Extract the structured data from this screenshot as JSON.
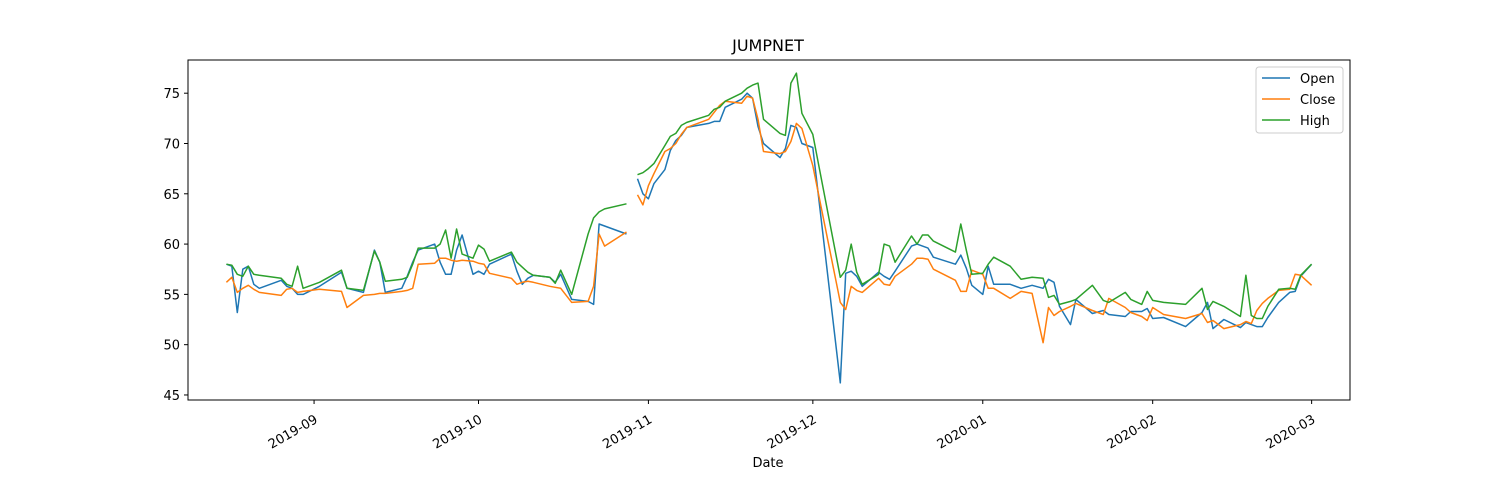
{
  "chart_data": {
    "type": "line",
    "title": "JUMPNET",
    "xlabel": "Date",
    "ylabel": "",
    "x_type": "date",
    "xlim": [
      "2019-08-09",
      "2020-03-08"
    ],
    "ylim": [
      44.5,
      78.3
    ],
    "yticks": [
      45,
      50,
      55,
      60,
      65,
      70,
      75
    ],
    "xticks": [
      "2019-09-01",
      "2019-10-01",
      "2019-11-01",
      "2019-12-01",
      "2020-01-01",
      "2020-02-01",
      "2020-03-01"
    ],
    "xtick_labels": [
      "2019-09",
      "2019-10",
      "2019-11",
      "2019-12",
      "2020-01",
      "2020-02",
      "2020-03"
    ],
    "grid": false,
    "legend": "top-right",
    "dates": [
      "2019-08-16",
      "2019-08-17",
      "2019-08-18",
      "2019-08-19",
      "2019-08-20",
      "2019-08-21",
      "2019-08-22",
      "2019-08-26",
      "2019-08-27",
      "2019-08-28",
      "2019-08-29",
      "2019-08-30",
      "2019-09-02",
      "2019-09-06",
      "2019-09-07",
      "2019-09-10",
      "2019-09-12",
      "2019-09-13",
      "2019-09-14",
      "2019-09-17",
      "2019-09-18",
      "2019-09-19",
      "2019-09-20",
      "2019-09-23",
      "2019-09-24",
      "2019-09-25",
      "2019-09-26",
      "2019-09-27",
      "2019-09-28",
      "2019-09-30",
      "2019-10-01",
      "2019-10-02",
      "2019-10-03",
      "2019-10-07",
      "2019-10-08",
      "2019-10-09",
      "2019-10-10",
      "2019-10-11",
      "2019-10-14",
      "2019-10-15",
      "2019-10-16",
      "2019-10-18",
      "2019-10-21",
      "2019-10-22",
      "2019-10-23",
      "2019-10-24",
      "2019-10-28",
      null,
      "2019-10-30",
      "2019-10-31",
      "2019-11-01",
      "2019-11-02",
      "2019-11-04",
      "2019-11-05",
      "2019-11-06",
      "2019-11-07",
      "2019-11-08",
      "2019-11-12",
      "2019-11-13",
      "2019-11-14",
      "2019-11-15",
      "2019-11-18",
      "2019-11-19",
      "2019-11-20",
      "2019-11-21",
      "2019-11-22",
      "2019-11-25",
      "2019-11-26",
      "2019-11-27",
      "2019-11-28",
      "2019-11-29",
      "2019-12-01",
      "2019-12-06",
      "2019-12-07",
      "2019-12-08",
      "2019-12-09",
      "2019-12-10",
      "2019-12-13",
      "2019-12-14",
      "2019-12-15",
      "2019-12-16",
      "2019-12-19",
      "2019-12-20",
      "2019-12-21",
      "2019-12-22",
      "2019-12-23",
      "2019-12-27",
      "2019-12-28",
      "2019-12-29",
      "2019-12-30",
      "2020-01-01",
      "2020-01-02",
      "2020-01-03",
      "2020-01-06",
      "2020-01-08",
      "2020-01-10",
      "2020-01-12",
      "2020-01-13",
      "2020-01-14",
      "2020-01-15",
      "2020-01-17",
      "2020-01-18",
      "2020-01-21",
      "2020-01-23",
      "2020-01-24",
      "2020-01-27",
      "2020-01-28",
      "2020-01-30",
      "2020-01-31",
      "2020-02-01",
      "2020-02-03",
      "2020-02-07",
      "2020-02-10",
      "2020-02-11",
      "2020-02-12",
      "2020-02-14",
      "2020-02-17",
      "2020-02-18",
      "2020-02-19",
      "2020-02-20",
      "2020-02-21",
      "2020-02-22",
      "2020-02-24",
      "2020-02-26",
      "2020-02-27",
      "2020-02-28",
      "2020-03-01"
    ],
    "series": [
      {
        "name": "Open",
        "color": "#1f77b4",
        "values": [
          58.0,
          57.8,
          53.2,
          57.5,
          57.8,
          56.0,
          55.6,
          56.4,
          55.8,
          55.6,
          55.0,
          55.0,
          55.8,
          57.2,
          55.6,
          55.2,
          59.4,
          58.2,
          55.2,
          55.6,
          56.8,
          58.2,
          59.4,
          60.0,
          58.2,
          57.0,
          57.0,
          59.4,
          60.9,
          57.0,
          57.3,
          57.0,
          58.0,
          59.0,
          57.3,
          56.0,
          56.6,
          56.9,
          56.7,
          56.2,
          57.0,
          54.5,
          54.3,
          54.0,
          62.0,
          61.8,
          61.0,
          null,
          66.5,
          65.0,
          64.5,
          66.0,
          67.4,
          69.3,
          70.3,
          70.8,
          71.6,
          72.0,
          72.2,
          72.2,
          73.6,
          74.4,
          75.0,
          74.5,
          71.7,
          70.0,
          68.6,
          69.5,
          71.8,
          71.6,
          70.0,
          69.6,
          46.2,
          57.1,
          57.3,
          56.8,
          55.8,
          57.2,
          56.8,
          56.5,
          57.3,
          59.8,
          60.0,
          59.8,
          59.6,
          58.7,
          58.0,
          58.9,
          57.6,
          55.9,
          55.0,
          57.8,
          56.0,
          56.0,
          55.6,
          55.9,
          55.6,
          56.5,
          56.2,
          53.8,
          52.0,
          54.5,
          53.1,
          53.4,
          53.0,
          52.8,
          53.3,
          53.3,
          53.6,
          52.6,
          52.7,
          51.8,
          53.2,
          54.2,
          51.6,
          52.5,
          51.7,
          52.2,
          52.0,
          51.8,
          51.8,
          52.7,
          54.2,
          55.2,
          55.3,
          56.8,
          58.0
        ]
      },
      {
        "name": "Close",
        "color": "#ff7f0e",
        "values": [
          56.2,
          56.7,
          55.2,
          55.6,
          55.9,
          55.5,
          55.2,
          54.9,
          55.5,
          55.6,
          55.2,
          55.3,
          55.5,
          55.3,
          53.7,
          54.9,
          55.0,
          55.1,
          55.1,
          55.3,
          55.4,
          55.6,
          58.0,
          58.1,
          58.6,
          58.6,
          58.4,
          58.3,
          58.4,
          58.3,
          58.1,
          58.0,
          57.1,
          56.6,
          56.0,
          56.2,
          56.3,
          56.2,
          55.8,
          55.7,
          55.6,
          54.2,
          54.3,
          55.8,
          61.0,
          59.8,
          61.2,
          null,
          64.9,
          63.9,
          65.8,
          67.0,
          69.2,
          69.5,
          70.0,
          70.9,
          71.6,
          72.4,
          73.1,
          73.8,
          74.2,
          74.0,
          74.7,
          74.5,
          72.4,
          69.2,
          69.0,
          69.2,
          70.2,
          72.0,
          71.5,
          67.8,
          54.2,
          53.5,
          55.8,
          55.4,
          55.2,
          56.6,
          56.0,
          55.9,
          56.8,
          58.0,
          58.6,
          58.6,
          58.5,
          57.5,
          56.4,
          55.3,
          55.3,
          57.4,
          57.0,
          55.6,
          55.6,
          54.6,
          55.3,
          55.1,
          50.2,
          53.7,
          52.9,
          53.3,
          53.8,
          54.1,
          53.4,
          53.0,
          54.6,
          53.7,
          53.2,
          52.8,
          52.4,
          53.7,
          53.0,
          52.6,
          53.1,
          52.2,
          52.4,
          51.6,
          52.0,
          52.3,
          52.1,
          53.4,
          54.1,
          54.6,
          55.4,
          55.5,
          57.0,
          56.9,
          55.9
        ]
      },
      {
        "name": "High",
        "color": "#2ca02c",
        "values": [
          58.0,
          57.9,
          57.0,
          56.8,
          57.8,
          57.0,
          56.9,
          56.6,
          56.0,
          55.8,
          57.8,
          55.6,
          56.2,
          57.4,
          55.6,
          55.4,
          59.3,
          58.2,
          56.3,
          56.5,
          56.7,
          58.0,
          59.6,
          59.6,
          60.0,
          61.4,
          58.6,
          61.5,
          59.0,
          58.6,
          59.9,
          59.5,
          58.3,
          59.2,
          58.2,
          57.7,
          57.2,
          56.9,
          56.7,
          56.1,
          57.4,
          55.0,
          61.0,
          62.6,
          63.2,
          63.5,
          64.0,
          null,
          66.9,
          67.1,
          67.5,
          68.0,
          69.8,
          70.7,
          71.0,
          71.8,
          72.1,
          72.8,
          73.4,
          73.6,
          74.2,
          75.0,
          75.5,
          75.8,
          76.0,
          72.4,
          71.0,
          70.8,
          76.0,
          77.0,
          73.0,
          70.9,
          56.7,
          57.4,
          60.0,
          57.2,
          56.0,
          57.0,
          60.0,
          59.8,
          58.2,
          60.8,
          60.0,
          60.9,
          60.9,
          60.3,
          59.2,
          62.0,
          59.4,
          57.0,
          57.1,
          58.0,
          58.7,
          57.8,
          56.5,
          56.7,
          56.6,
          54.7,
          54.9,
          54.0,
          54.3,
          54.5,
          55.9,
          54.4,
          54.2,
          55.2,
          54.5,
          54.0,
          55.3,
          54.4,
          54.2,
          54.0,
          55.6,
          53.5,
          54.3,
          53.8,
          52.8,
          56.9,
          52.9,
          52.6,
          52.6,
          53.8,
          55.5,
          55.6,
          55.5,
          56.9,
          58.0
        ]
      }
    ]
  }
}
